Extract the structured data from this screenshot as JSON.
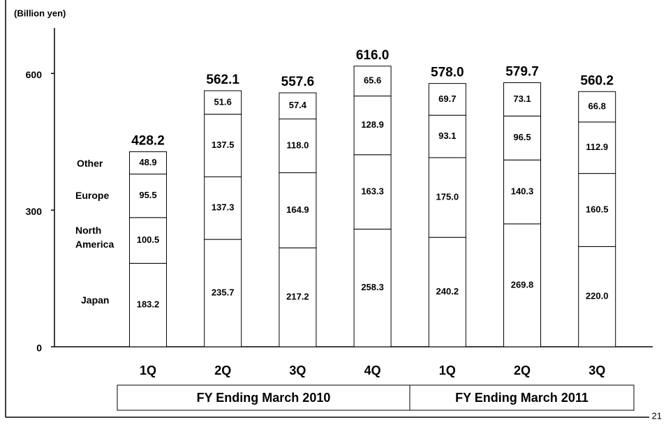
{
  "chart_data": {
    "type": "stacked_bar",
    "unit_label": "(Billion yen)",
    "page_number": "21",
    "categories": [
      "1Q",
      "2Q",
      "3Q",
      "4Q",
      "1Q",
      "2Q",
      "3Q"
    ],
    "groups": [
      "FY Ending March 2010",
      "FY Ending March 2011"
    ],
    "series": [
      {
        "name": "Japan",
        "color": "#ffffff",
        "values": [
          183.2,
          235.7,
          217.2,
          258.3,
          240.2,
          269.8,
          220.0
        ],
        "value_labels": [
          "183.2",
          "235.7",
          "217.2",
          "258.3",
          "240.2",
          "269.8",
          "220.0"
        ]
      },
      {
        "name": "North America",
        "color": "#ffffff",
        "values": [
          100.5,
          137.3,
          164.9,
          163.3,
          175.0,
          140.3,
          160.5
        ],
        "value_labels": [
          "100.5",
          "137.3",
          "164.9",
          "163.3",
          "175.0",
          "140.3",
          "160.5"
        ]
      },
      {
        "name": "Europe",
        "color": "#ffffff",
        "values": [
          95.5,
          137.5,
          118.0,
          128.9,
          93.1,
          96.5,
          112.9
        ],
        "value_labels": [
          "95.5",
          "137.5",
          "118.0",
          "128.9",
          "93.1",
          "96.5",
          "112.9"
        ]
      },
      {
        "name": "Other",
        "color": "#ffffff",
        "values": [
          48.9,
          51.6,
          57.4,
          65.6,
          69.7,
          73.1,
          66.8
        ],
        "value_labels": [
          "48.9",
          "51.6",
          "57.4",
          "65.6",
          "69.7",
          "73.1",
          "66.8"
        ]
      }
    ],
    "totals": [
      428.2,
      562.1,
      557.6,
      616.0,
      578.0,
      579.7,
      560.2
    ],
    "totals_labels": [
      "428.2",
      "562.1",
      "557.6",
      "616.0",
      "578.0",
      "579.7",
      "560.2"
    ],
    "ylim": [
      0,
      700
    ],
    "yticks": [
      0,
      300,
      600
    ]
  }
}
